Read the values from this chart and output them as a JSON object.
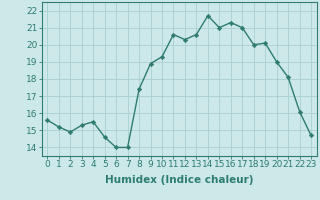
{
  "x": [
    0,
    1,
    2,
    3,
    4,
    5,
    6,
    7,
    8,
    9,
    10,
    11,
    12,
    13,
    14,
    15,
    16,
    17,
    18,
    19,
    20,
    21,
    22,
    23
  ],
  "y": [
    15.6,
    15.2,
    14.9,
    15.3,
    15.5,
    14.6,
    14.0,
    14.0,
    17.4,
    18.9,
    19.3,
    20.6,
    20.3,
    20.6,
    21.7,
    21.0,
    21.3,
    21.0,
    20.0,
    20.1,
    19.0,
    18.1,
    16.1,
    14.7
  ],
  "xlabel": "Humidex (Indice chaleur)",
  "ylim": [
    13.5,
    22.5
  ],
  "xlim": [
    -0.5,
    23.5
  ],
  "yticks": [
    14,
    15,
    16,
    17,
    18,
    19,
    20,
    21,
    22
  ],
  "xticks": [
    0,
    1,
    2,
    3,
    4,
    5,
    6,
    7,
    8,
    9,
    10,
    11,
    12,
    13,
    14,
    15,
    16,
    17,
    18,
    19,
    20,
    21,
    22,
    23
  ],
  "line_color": "#2e7d6e",
  "bg_color": "#cce8e8",
  "grid_color": "#aacece",
  "marker": "D",
  "marker_size": 2.2,
  "line_width": 1.0,
  "xlabel_fontsize": 7.5,
  "tick_fontsize": 6.5
}
